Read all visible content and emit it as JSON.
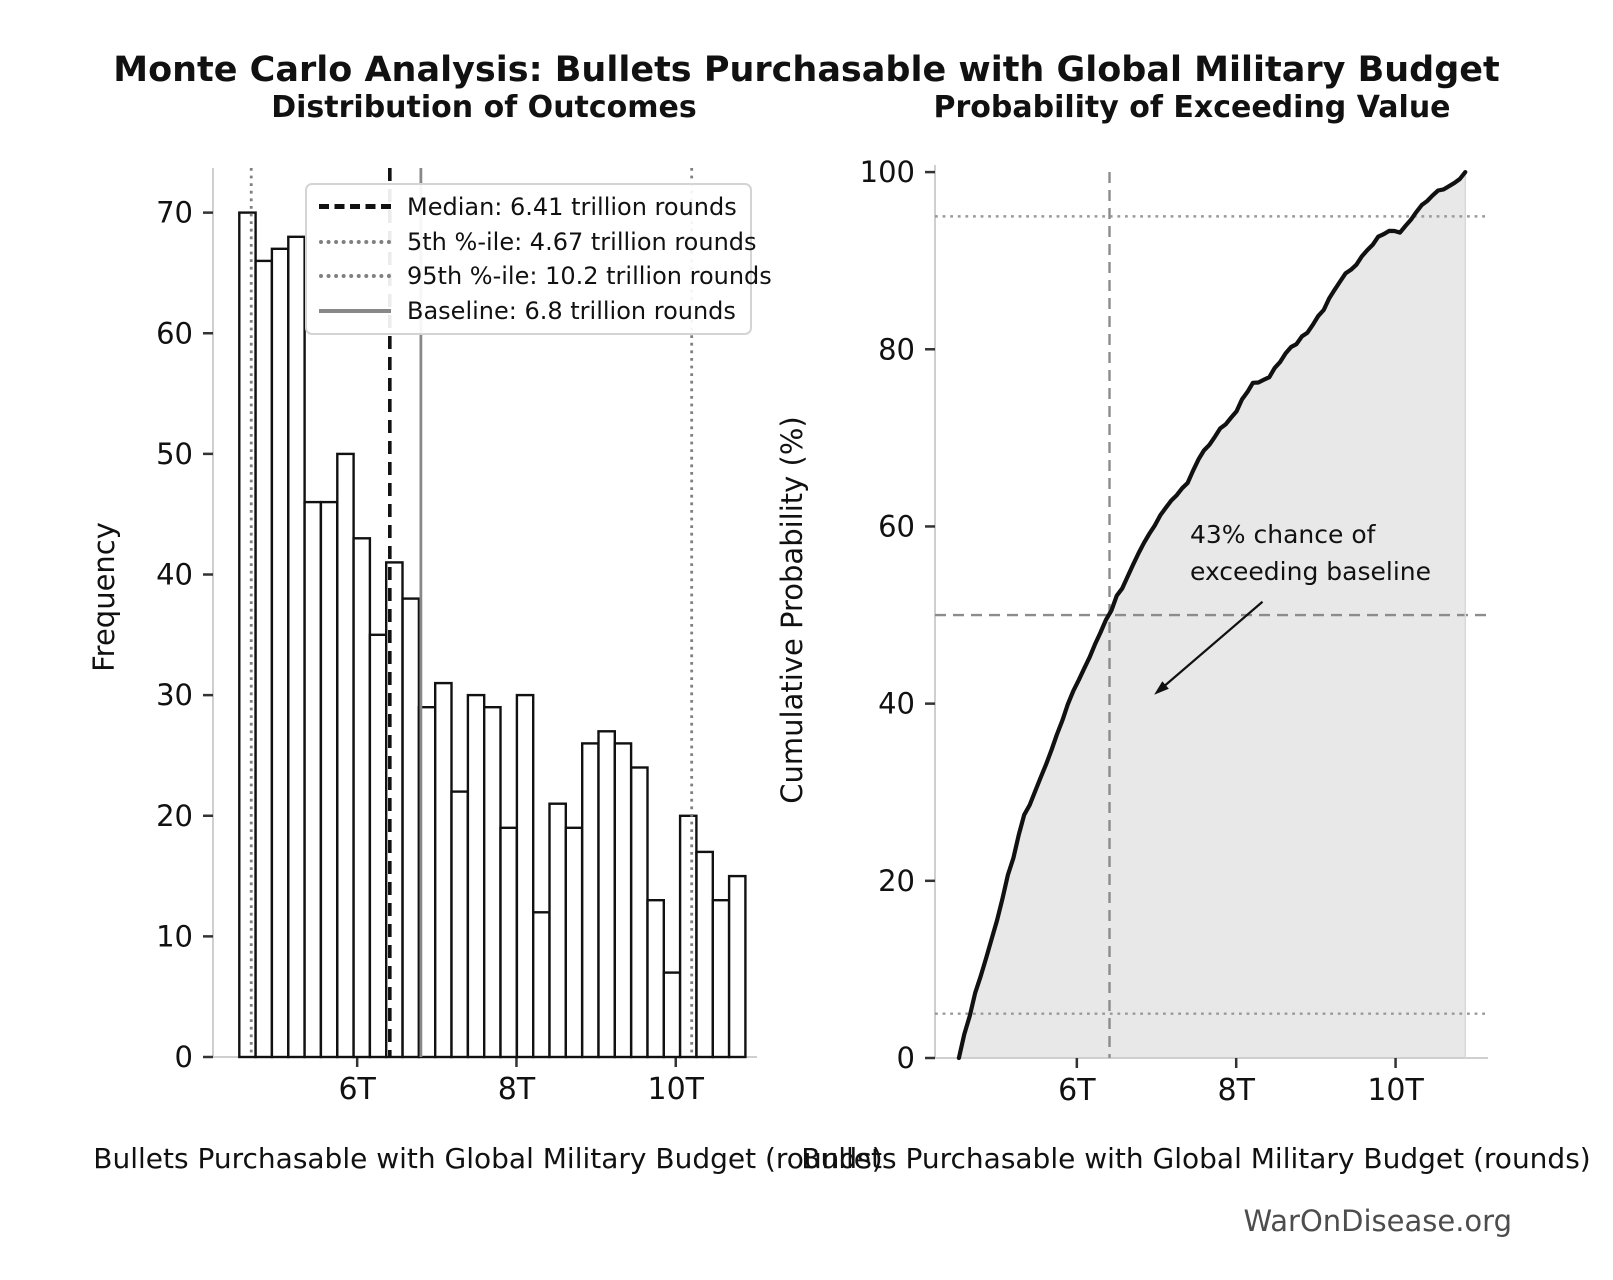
{
  "title": "Monte Carlo Analysis: Bullets Purchasable with Global Military Budget",
  "watermark": "WarOnDisease.org",
  "chart_data": [
    {
      "type": "bar",
      "subtitle": "Distribution of Outcomes",
      "xlabel": "Bullets Purchasable with Global Military Budget (rounds)",
      "ylabel": "Frequency",
      "bins": {
        "start_trillions": 4.52,
        "width_trillions": 0.205,
        "count": 31
      },
      "counts": [
        70,
        66,
        67,
        68,
        46,
        46,
        50,
        43,
        35,
        41,
        38,
        29,
        31,
        22,
        30,
        29,
        19,
        30,
        12,
        21,
        19,
        26,
        27,
        26,
        24,
        13,
        7,
        20,
        17,
        13,
        15
      ],
      "total_samples": 1000,
      "bar_fill": "#ffffff",
      "bar_edge": "#111111",
      "xlim": [
        4.19,
        11.02
      ],
      "ylim": [
        0,
        73.7
      ],
      "grid": false,
      "x_ticks": [
        {
          "value": 6,
          "label": "6T"
        },
        {
          "value": 8,
          "label": "8T"
        },
        {
          "value": 10,
          "label": "10T"
        }
      ],
      "y_ticks": [
        0,
        10,
        20,
        30,
        40,
        50,
        60,
        70
      ],
      "legend_position": "upper-left-inside",
      "ref_lines": [
        {
          "label": "Median: 6.41 trillion rounds",
          "value": 6.41,
          "style": "dashed",
          "color": "#111111"
        },
        {
          "label": "5th %-ile: 4.67 trillion rounds",
          "value": 4.67,
          "style": "dotted",
          "color": "#808080"
        },
        {
          "label": "95th %-ile: 10.2 trillion rounds",
          "value": 10.2,
          "style": "dotted",
          "color": "#808080"
        },
        {
          "label": "Baseline: 6.8 trillion rounds",
          "value": 6.8,
          "style": "solid",
          "color": "#888888"
        }
      ]
    },
    {
      "type": "line",
      "subtitle": "Probability of Exceeding Value",
      "xlabel": "Bullets Purchasable with Global Military Budget (rounds)",
      "ylabel": "Cumulative Probability (%)",
      "curve_description": "empirical CDF of the Monte Carlo outcomes",
      "bin_edge_start_trillions": 4.52,
      "bin_width_trillions": 0.205,
      "cumulative_percent_at_bin_edges": [
        0,
        7,
        13.6,
        20.3,
        27.1,
        31.7,
        36.3,
        41.3,
        45.6,
        49.1,
        53.2,
        57,
        59.9,
        63,
        65.2,
        68.2,
        71.1,
        73,
        76,
        77.2,
        79.3,
        81.2,
        83.8,
        86.5,
        89.1,
        91.5,
        92.8,
        93.5,
        95.5,
        97.2,
        98.5,
        100
      ],
      "xlim": [
        4.22,
        11.16
      ],
      "ylim": [
        0,
        100.8
      ],
      "grid": false,
      "x_ticks": [
        {
          "value": 6,
          "label": "6T"
        },
        {
          "value": 8,
          "label": "8T"
        },
        {
          "value": 10,
          "label": "10T"
        }
      ],
      "y_ticks": [
        0,
        20,
        40,
        60,
        80,
        100
      ],
      "line_color": "#111111",
      "fill_color": "#e8e8e8",
      "ref_lines_h": [
        {
          "value": 5,
          "style": "dotted",
          "color": "#9a9a9a"
        },
        {
          "value": 50,
          "style": "dashed",
          "color": "#8c8c8c"
        },
        {
          "value": 95,
          "style": "dotted",
          "color": "#9a9a9a"
        }
      ],
      "ref_lines_v": [
        {
          "value": 6.41,
          "style": "dashed",
          "color": "#8c8c8c"
        }
      ],
      "annotation": {
        "line1": "43% chance of",
        "line2": "exceeding baseline",
        "arrow_from": [
          8.33,
          51.5
        ],
        "arrow_to": [
          6.97,
          41.0
        ]
      }
    }
  ]
}
